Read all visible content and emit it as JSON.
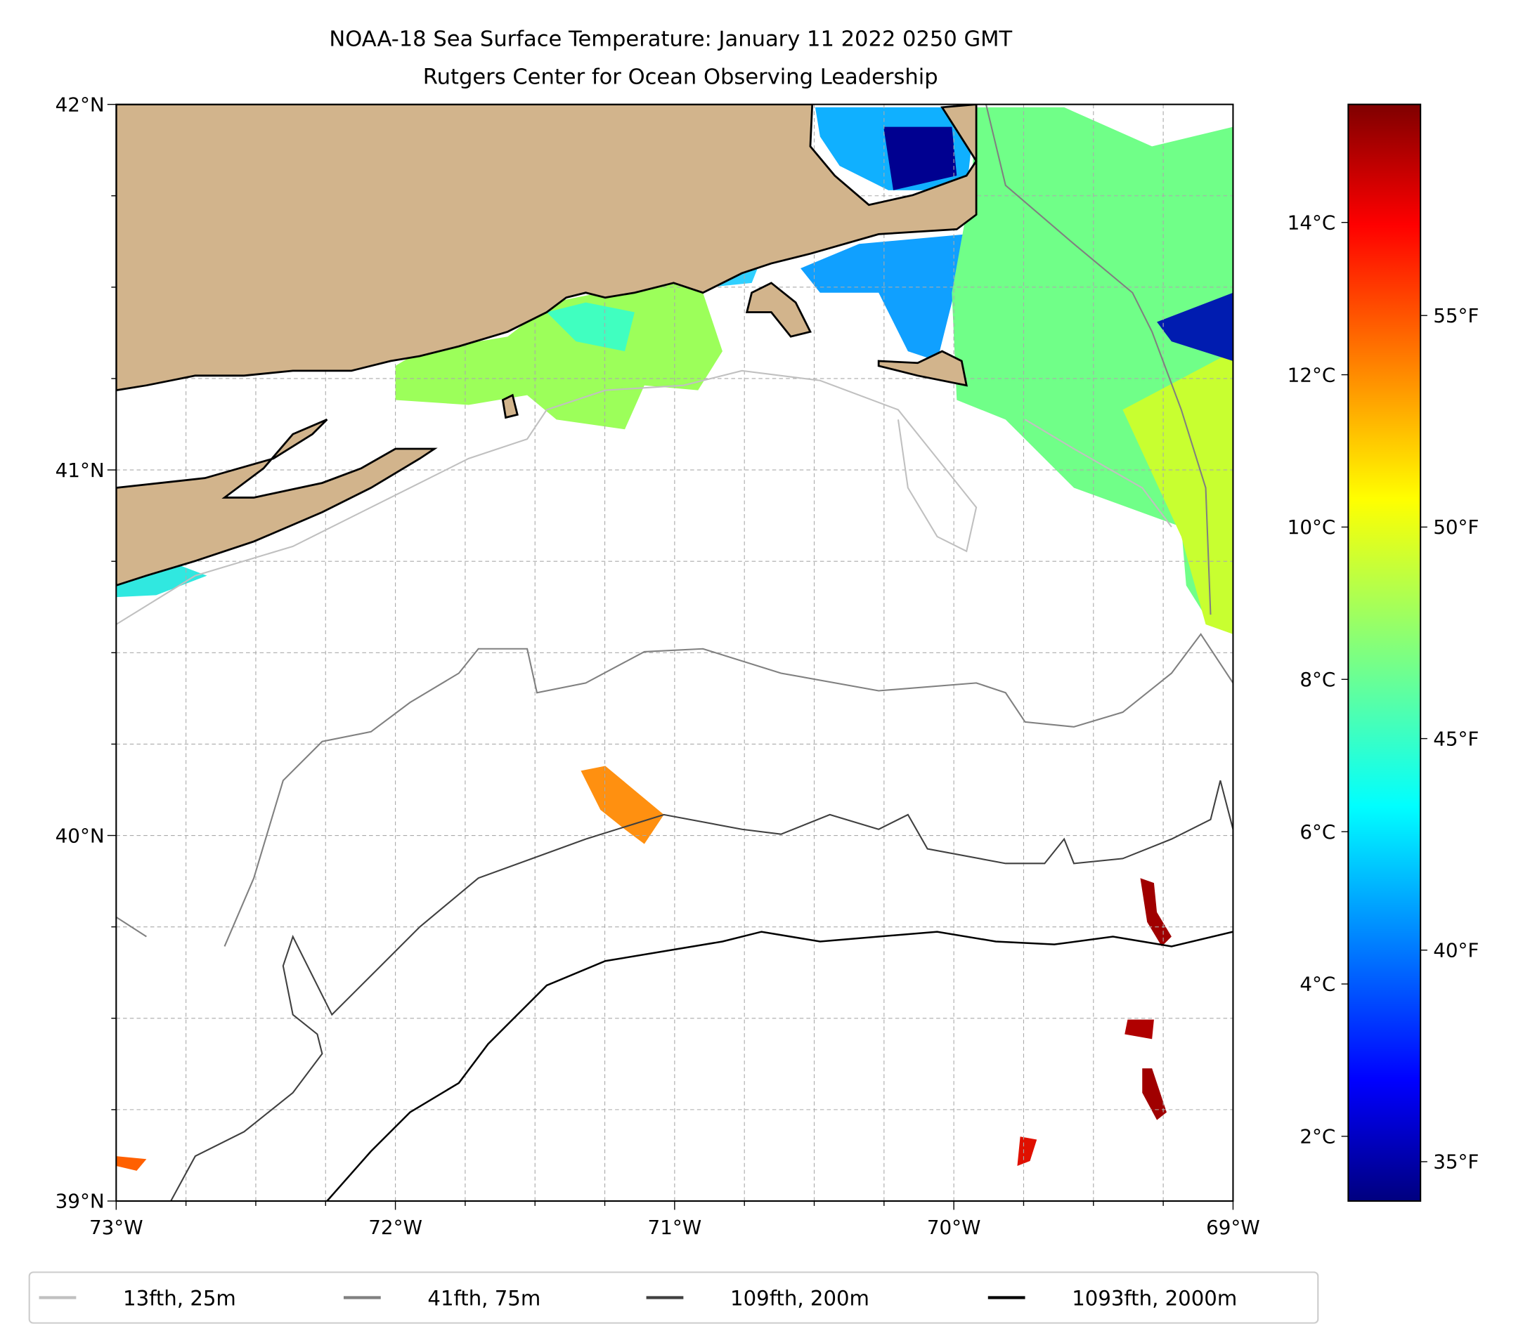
{
  "chart_data": {
    "type": "heatmap",
    "title": "NOAA-18 Sea Surface Temperature: January 11 2022 0250 GMT",
    "subtitle": "Rutgers Center for Ocean Observing Leadership",
    "xlabel": "",
    "ylabel": "",
    "xlim": [
      -73,
      -69
    ],
    "ylim": [
      39,
      42
    ],
    "grid": true,
    "x_ticks": [
      {
        "value": -73,
        "label": "73°W"
      },
      {
        "value": -72,
        "label": "72°W"
      },
      {
        "value": -71,
        "label": "71°W"
      },
      {
        "value": -70,
        "label": "70°W"
      },
      {
        "value": -69,
        "label": "69°W"
      }
    ],
    "y_ticks": [
      {
        "value": 42,
        "label": "42°N"
      },
      {
        "value": 41,
        "label": "41°N"
      },
      {
        "value": 40,
        "label": "40°N"
      },
      {
        "value": 39,
        "label": "39°N"
      }
    ],
    "colorbar": {
      "colormap": "jet",
      "range_c": [
        1.15,
        15.55
      ],
      "celsius_ticks": [
        {
          "value": 2,
          "label": "2°C"
        },
        {
          "value": 4,
          "label": "4°C"
        },
        {
          "value": 6,
          "label": "6°C"
        },
        {
          "value": 8,
          "label": "8°C"
        },
        {
          "value": 10,
          "label": "10°C"
        },
        {
          "value": 12,
          "label": "12°C"
        },
        {
          "value": 14,
          "label": "14°C"
        }
      ],
      "fahrenheit_ticks": [
        {
          "value": 35,
          "label": "35°F"
        },
        {
          "value": 40,
          "label": "40°F"
        },
        {
          "value": 45,
          "label": "45°F"
        },
        {
          "value": 50,
          "label": "50°F"
        },
        {
          "value": 55,
          "label": "55°F"
        }
      ]
    },
    "legend": {
      "placement": "bottom",
      "entries": [
        {
          "label": "13fth, 25m",
          "color": "#c0c0c0"
        },
        {
          "label": "41fth, 75m",
          "color": "#808080"
        },
        {
          "label": "109fth, 200m",
          "color": "#404040"
        },
        {
          "label": "1093fth, 2000m",
          "color": "#000000"
        }
      ]
    },
    "colors": {
      "land": "#d2b48c",
      "coast": "#000000"
    }
  }
}
